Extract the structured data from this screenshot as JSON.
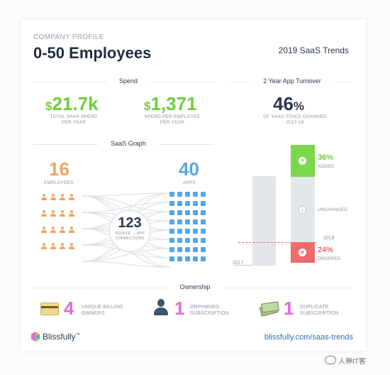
{
  "header": {
    "eyebrow": "COMPANY PROFILE",
    "title": "0-50 Employees",
    "trends": "2019 SaaS Trends"
  },
  "spend": {
    "section_label": "Spend",
    "total": {
      "currency": "$",
      "value": "21.7k",
      "label_line1": "TOTAL SAAS SPEND",
      "label_line2": "PER YEAR"
    },
    "per_employee": {
      "currency": "$",
      "value": "1,371",
      "label_line1": "SPEND PER EMPLOYEE",
      "label_line2": "PER YEAR"
    }
  },
  "turnover": {
    "section_label": "2 Year App Turnover",
    "value": "46",
    "pct": "%",
    "label_line1": "OF SAAS STACK CHANGED",
    "label_line2": "2017-18",
    "added_value": "36%",
    "added_label": "ADDED",
    "unchanged_label": "UNCHANGED",
    "dropped_value": "24%",
    "dropped_label": "DROPPED",
    "year_2018": "2018",
    "year_2017": "2017",
    "colors": {
      "added": "#7ad84a",
      "dropped": "#ef6a6a",
      "bar": "#e3e7ec"
    },
    "shares": {
      "added": 0.36,
      "dropped": 0.24
    }
  },
  "graph": {
    "section_label": "SaaS Graph",
    "employees_value": "16",
    "employees_label": "EMPLOYEES",
    "apps_value": "40",
    "apps_label": "APPS",
    "connections_value": "123",
    "connections_label_line1": "PEOPLE ↔ APP",
    "connections_label_line2": "CONNECTIONS",
    "employee_count": 16,
    "app_count": 40
  },
  "ownership": {
    "section_label": "Ownership",
    "items": [
      {
        "icon": "credit-card-icon",
        "value": "4",
        "line1": "UNIQUE BILLING",
        "line2": "OWNERS"
      },
      {
        "icon": "user-silhouette-icon",
        "value": "1",
        "line1": "ORPHANED",
        "line2": "SUBSCRIPTION"
      },
      {
        "icon": "money-stack-icon",
        "value": "1",
        "line1": "DUPLICATE",
        "line2": "SUBSCRIPTION"
      }
    ]
  },
  "footer": {
    "brand": "Blissfully",
    "tm": "™",
    "link": "blissfully.com/saas-trends"
  },
  "watermark": {
    "text": "人神IT客"
  }
}
